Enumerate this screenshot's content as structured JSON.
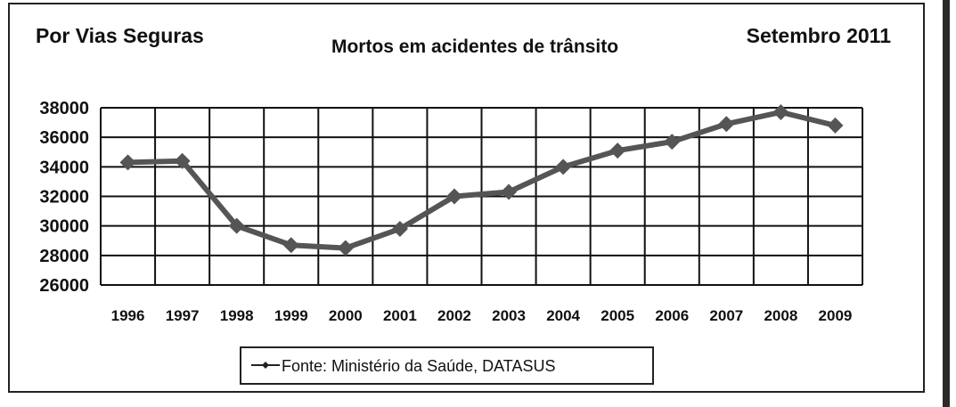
{
  "header": {
    "left_label": "Por Vias Seguras",
    "title": "Mortos em acidentes de trânsito",
    "right_label": "Setembro 2011"
  },
  "legend": {
    "label": "Fonte: Ministério da Saúde, DATASUS"
  },
  "colors": {
    "line": "#555555",
    "marker": "#555555",
    "grid": "#111111",
    "frame": "#222222",
    "side_bar": "#2a2a2a"
  },
  "chart_data": {
    "type": "line",
    "title": "Mortos em acidentes de trânsito",
    "xlabel": "",
    "ylabel": "",
    "categories": [
      "1996",
      "1997",
      "1998",
      "1999",
      "2000",
      "2001",
      "2002",
      "2003",
      "2004",
      "2005",
      "2006",
      "2007",
      "2008",
      "2009"
    ],
    "y_ticks": [
      "38000",
      "36000",
      "34000",
      "32000",
      "30000",
      "28000",
      "26000"
    ],
    "ylim": [
      26000,
      38000
    ],
    "grid": true,
    "legend_position": "bottom-center",
    "marker": "diamond",
    "series": [
      {
        "name": "Fonte: Ministério da Saúde, DATASUS",
        "values": [
          34300,
          34400,
          30000,
          28700,
          28500,
          29800,
          32000,
          32300,
          34000,
          35100,
          35700,
          36900,
          37700,
          36800
        ]
      }
    ]
  }
}
